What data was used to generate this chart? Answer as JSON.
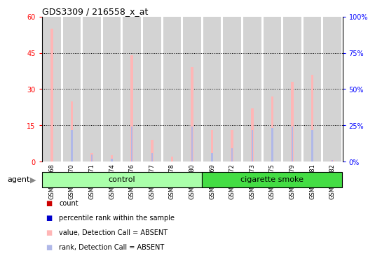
{
  "title": "GDS3309 / 216558_x_at",
  "samples": [
    "GSM227868",
    "GSM227870",
    "GSM227871",
    "GSM227874",
    "GSM227876",
    "GSM227877",
    "GSM227878",
    "GSM227880",
    "GSM227869",
    "GSM227872",
    "GSM227873",
    "GSM227875",
    "GSM227879",
    "GSM227881",
    "GSM227882"
  ],
  "n_control": 8,
  "n_smoke": 7,
  "value_absent": [
    55,
    25,
    3.5,
    2.5,
    44,
    9,
    2,
    39,
    13,
    13,
    22,
    27,
    33,
    36,
    0.5
  ],
  "rank_absent": [
    0,
    22,
    5,
    2,
    24,
    6,
    0,
    24,
    6,
    9,
    22,
    23,
    24,
    22,
    1
  ],
  "ylim_left": [
    0,
    60
  ],
  "ylim_right": [
    0,
    100
  ],
  "yticks_left": [
    0,
    15,
    30,
    45,
    60
  ],
  "yticks_right": [
    0,
    25,
    50,
    75,
    100
  ],
  "ytick_labels_left": [
    "0",
    "15",
    "30",
    "45",
    "60"
  ],
  "ytick_labels_right": [
    "0%",
    "25%",
    "50%",
    "75%",
    "100%"
  ],
  "group_control_color": "#aaffaa",
  "group_smoke_color": "#44dd44",
  "bar_bg_color": "#d3d3d3",
  "color_value_absent": "#ffb6b6",
  "color_rank_absent": "#b0b8e8",
  "color_value_present": "#cc0000",
  "color_rank_present": "#0000cc",
  "agent_label": "agent",
  "control_label": "control",
  "smoke_label": "cigarette smoke",
  "legend_items": [
    {
      "color": "#cc0000",
      "label": "count"
    },
    {
      "color": "#0000cc",
      "label": "percentile rank within the sample"
    },
    {
      "color": "#ffb6b6",
      "label": "value, Detection Call = ABSENT"
    },
    {
      "color": "#b0b8e8",
      "label": "rank, Detection Call = ABSENT"
    }
  ]
}
